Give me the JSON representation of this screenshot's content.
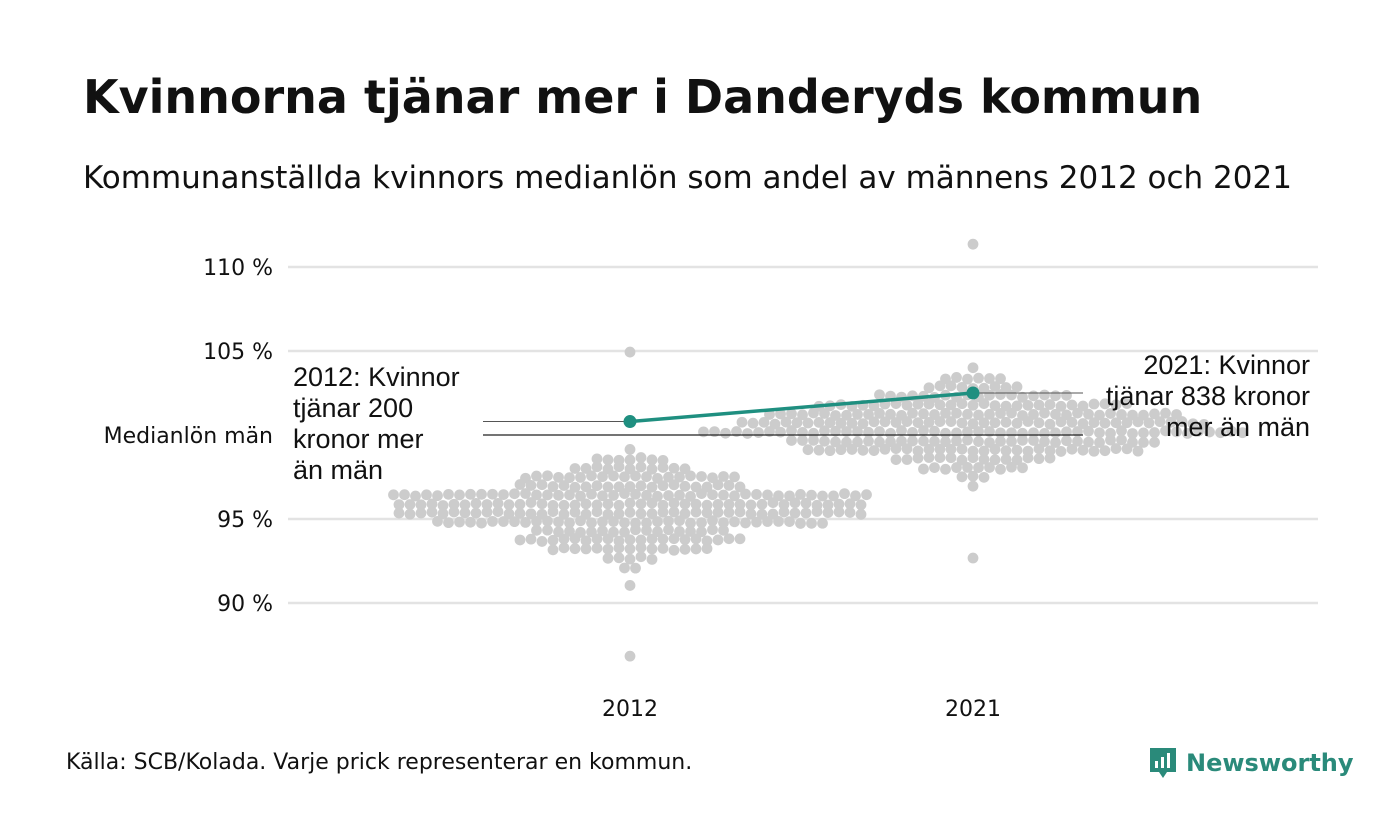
{
  "title": "Kvinnorna tjänar mer i Danderyds kommun",
  "subtitle": "Kommunanställda kvinnors medianlön som andel av männens 2012 och 2021",
  "source": "Källa: SCB/Kolada. Varje prick representerar en kommun.",
  "brand": {
    "name": "Newsworthy",
    "color": "#2a8a7a"
  },
  "colors": {
    "dots": "#cccccc",
    "highlight": "#1f8f80",
    "grid": "#e3e3e3",
    "reference": "#222222"
  },
  "chart_data": {
    "type": "scatter",
    "subtype": "beeswarm",
    "title": "Kvinnorna tjänar mer i Danderyds kommun",
    "subtitle": "Kommunanställda kvinnors medianlön som andel av männens 2012 och 2021",
    "categories": [
      "2012",
      "2021"
    ],
    "y_ticks": [
      {
        "value": 90,
        "label": "90 %"
      },
      {
        "value": 95,
        "label": "95 %"
      },
      {
        "value": 100,
        "label": "Medianlön män"
      },
      {
        "value": 105,
        "label": "105 %"
      },
      {
        "value": 110,
        "label": "110 %"
      }
    ],
    "ylim": [
      86,
      112
    ],
    "grid": true,
    "reference_line": {
      "value": 100,
      "label": "Medianlön män"
    },
    "highlight": {
      "name": "Danderyd",
      "values": [
        {
          "x": "2012",
          "y": 100.8
        },
        {
          "x": "2021",
          "y": 102.5
        }
      ]
    },
    "annotations": [
      {
        "x": "2012",
        "lines": [
          "2012: Kvinnor",
          "tjänar 200",
          "kronor mer",
          "än män"
        ]
      },
      {
        "x": "2021",
        "lines": [
          "2021: Kvinnor",
          "tjänar 838 kronor",
          "mer än män"
        ]
      }
    ],
    "distribution": [
      {
        "x": "2012",
        "min": 86.6,
        "max": 105.2,
        "center": 95.5,
        "count": 290
      },
      {
        "x": "2021",
        "min": 92.5,
        "max": 111.4,
        "center": 100.5,
        "count": 290
      }
    ]
  }
}
